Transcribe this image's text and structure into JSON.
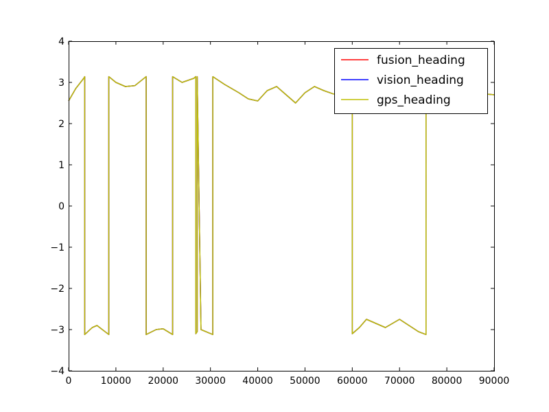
{
  "chart_data": {
    "type": "line",
    "xlim": [
      0,
      90000
    ],
    "ylim": [
      -4,
      4
    ],
    "xticks": [
      0,
      10000,
      20000,
      30000,
      40000,
      50000,
      60000,
      70000,
      80000,
      90000
    ],
    "xtick_labels": [
      "0",
      "10000",
      "20000",
      "30000",
      "40000",
      "50000",
      "60000",
      "70000",
      "80000",
      "90000"
    ],
    "yticks": [
      4,
      3,
      2,
      1,
      0,
      -1,
      -2,
      -3,
      -4
    ],
    "ytick_labels": [
      "4",
      "3",
      "2",
      "1",
      "0",
      "−1",
      "−2",
      "−3",
      "−4"
    ],
    "grid": false,
    "legend_position": "top-right",
    "x": [
      0,
      1500,
      3200,
      3400,
      3401,
      5000,
      6000,
      8500,
      8501,
      10000,
      12000,
      14000,
      16400,
      16401,
      18500,
      20000,
      22000,
      22001,
      24000,
      26500,
      26900,
      26901,
      27200,
      27201,
      28000,
      30500,
      30501,
      33000,
      36000,
      38000,
      40000,
      42000,
      44000,
      46000,
      48000,
      50000,
      52000,
      54000,
      56000,
      58000,
      60000,
      60001,
      61500,
      63000,
      65000,
      67000,
      68500,
      70000,
      72000,
      74000,
      75600,
      75601,
      78000,
      80000,
      82000,
      84000,
      86000,
      88000,
      90000
    ],
    "series": [
      {
        "name": "fusion_heading",
        "color": "#ff0000",
        "values": [
          2.55,
          2.85,
          3.1,
          3.14,
          -3.12,
          -2.95,
          -2.9,
          -3.12,
          3.14,
          3.0,
          2.9,
          2.92,
          3.14,
          -3.12,
          -3.0,
          -2.98,
          -3.12,
          3.14,
          3.0,
          3.1,
          3.14,
          -3.1,
          -3.05,
          3.14,
          -3.0,
          -3.12,
          3.14,
          2.95,
          2.75,
          2.6,
          2.55,
          2.8,
          2.9,
          2.7,
          2.5,
          2.75,
          2.9,
          2.8,
          2.72,
          2.7,
          2.7,
          -3.1,
          -2.95,
          -2.75,
          -2.85,
          -2.95,
          -2.85,
          -2.75,
          -2.9,
          -3.05,
          -3.12,
          2.3,
          2.6,
          2.75,
          2.8,
          2.75,
          2.7,
          2.72,
          2.7
        ]
      },
      {
        "name": "vision_heading",
        "color": "#0000ff",
        "values": [
          2.55,
          2.85,
          3.1,
          3.14,
          -3.12,
          -2.95,
          -2.9,
          -3.12,
          3.14,
          3.0,
          2.9,
          2.92,
          3.14,
          -3.12,
          -3.0,
          -2.98,
          -3.12,
          3.14,
          3.0,
          3.1,
          3.14,
          -3.1,
          -3.05,
          3.14,
          -3.0,
          -3.12,
          3.14,
          2.95,
          2.75,
          2.6,
          2.55,
          2.8,
          2.9,
          2.7,
          2.5,
          2.75,
          2.9,
          2.8,
          2.72,
          2.7,
          2.7,
          -3.1,
          -2.95,
          -2.75,
          -2.85,
          -2.95,
          -2.85,
          -2.75,
          -2.9,
          -3.05,
          -3.12,
          2.3,
          2.6,
          2.75,
          2.8,
          2.75,
          2.7,
          2.72,
          2.7
        ]
      },
      {
        "name": "gps_heading",
        "color": "#bfbf00",
        "values": [
          2.55,
          2.85,
          3.1,
          3.14,
          -3.12,
          -2.95,
          -2.9,
          -3.12,
          3.14,
          3.0,
          2.9,
          2.92,
          3.14,
          -3.12,
          -3.0,
          -2.98,
          -3.12,
          3.14,
          3.0,
          3.1,
          3.14,
          -3.1,
          -3.05,
          3.14,
          -3.0,
          -3.12,
          3.14,
          2.95,
          2.75,
          2.6,
          2.55,
          2.8,
          2.9,
          2.7,
          2.5,
          2.75,
          2.9,
          2.8,
          2.72,
          2.7,
          2.7,
          -3.1,
          -2.95,
          -2.75,
          -2.85,
          -2.95,
          -2.85,
          -2.75,
          -2.9,
          -3.05,
          -3.12,
          2.3,
          2.6,
          2.75,
          2.8,
          2.75,
          2.7,
          2.72,
          2.7
        ]
      }
    ]
  }
}
